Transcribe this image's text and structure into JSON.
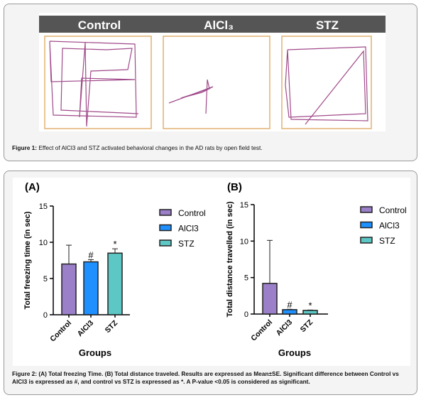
{
  "figure1": {
    "panel_titles": [
      "Control",
      "AlCl₃",
      "STZ"
    ],
    "caption_label": "Figure 1:",
    "caption_text": "Effect of AlCl3 and STZ activated behavioral changes in the AD rats by open field test."
  },
  "chart_data": [
    {
      "type": "bar",
      "panel_label": "(A)",
      "y_label": "Total freezing time (in sec)",
      "x_label": "Groups",
      "categories": [
        "Control",
        "AlCl3",
        "STZ"
      ],
      "values": [
        7.0,
        7.3,
        8.5
      ],
      "errors": [
        2.6,
        0.3,
        0.6
      ],
      "annotations": [
        null,
        "#",
        "*"
      ],
      "colors": [
        "#9b80c9",
        "#1e90ff",
        "#5cc7c4"
      ],
      "ylim": [
        0,
        15
      ],
      "yticks": [
        0,
        5,
        10,
        15
      ],
      "legend": "right"
    },
    {
      "type": "bar",
      "panel_label": "(B)",
      "y_label": "Total distance travelled (in sec)",
      "x_label": "Groups",
      "categories": [
        "Control",
        "AlCl3",
        "STZ"
      ],
      "values": [
        4.2,
        0.6,
        0.5
      ],
      "errors": [
        5.9,
        0.05,
        0.05
      ],
      "annotations": [
        null,
        "#",
        "*"
      ],
      "colors": [
        "#9b80c9",
        "#1e90ff",
        "#5cc7c4"
      ],
      "ylim": [
        0,
        15
      ],
      "yticks": [
        0,
        5,
        10,
        15
      ],
      "legend": "right"
    }
  ],
  "figure2": {
    "caption": "Figure 2: (A) Total freezing Time. (B) Total distance traveled. Results are expressed as Mean±SE. Significant difference between Control vs AlCl3 is expressed as #, and control vs STZ is expressed as *. A P-value <0.05 is considered as significant."
  }
}
